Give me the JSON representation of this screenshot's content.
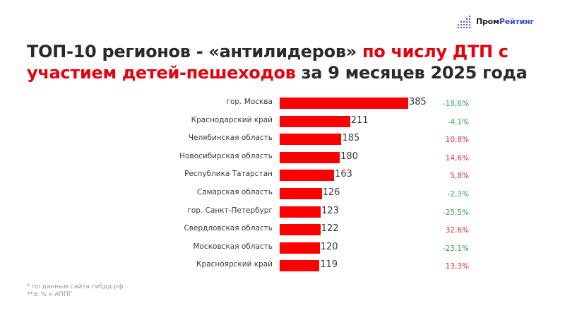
{
  "logo": {
    "part1": "Пром",
    "part2": "Рейтинг",
    "icon": "bar-dots-icon",
    "accent": "#3a4fc2"
  },
  "title": {
    "part1": "ТОП-10 регионов - «антилидеров» ",
    "part2_red": "по числу ДТП с участием детей-пешеходов",
    "part3": " за 9 месяцев 2025 года"
  },
  "footnotes": [
    "* по данным сайта гибдд.рф",
    "**± % к АППГ"
  ],
  "chart_data": {
    "type": "bar",
    "orientation": "horizontal",
    "title": "ТОП-10 регионов - «антилидеров» по числу ДТП с участием детей-пешеходов за 9 месяцев 2025 года",
    "xlabel": "",
    "ylabel": "",
    "grid": false,
    "legend": "none",
    "bar_color": "#ff0000",
    "categories": [
      "гор. Москва",
      "Краснодарский край",
      "Челябинская область",
      "Новосибирская область",
      "Республика Татарстан",
      "Самарская область",
      "гор. Санкт-Петербург",
      "Свердловская область",
      "Московская область",
      "Красноярский край"
    ],
    "values": [
      385,
      211,
      185,
      180,
      163,
      126,
      123,
      122,
      120,
      119
    ],
    "change_labels": [
      "-18,6%",
      "-4,1%",
      "10,8%",
      "14,6%",
      "5,8%",
      "-2,3%",
      "-25,5%",
      "32,6%",
      "-23,1%",
      "13,3%"
    ],
    "change_values": [
      -18.6,
      -4.1,
      10.8,
      14.6,
      5.8,
      -2.3,
      -25.5,
      32.6,
      -23.1,
      13.3
    ],
    "positive_color": "#d6303c",
    "negative_color": "#3aa356"
  }
}
